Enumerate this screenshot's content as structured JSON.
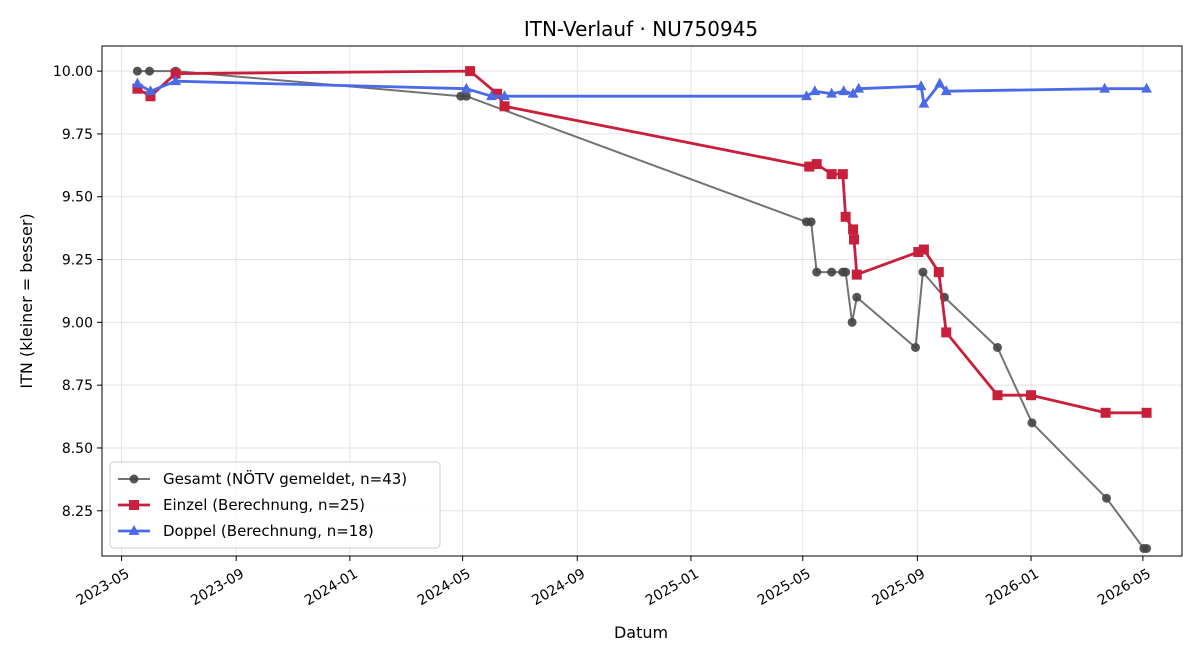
{
  "chart_data": {
    "type": "line",
    "title": "ITN-Verlauf · NU750945",
    "xlabel": "Datum",
    "ylabel": "ITN  (kleiner = besser)",
    "x_type": "date",
    "xlim": [
      "2023-04-10",
      "2026-06-12"
    ],
    "ylim": [
      8.07,
      10.1
    ],
    "grid": true,
    "legend_position": "lower-left",
    "x_ticks": [
      "2023-05-01",
      "2023-09-01",
      "2024-01-01",
      "2024-05-01",
      "2024-09-01",
      "2025-01-01",
      "2025-05-01",
      "2025-09-01",
      "2026-01-01",
      "2026-05-01"
    ],
    "x_tick_labels": [
      "2023-05",
      "2023-09",
      "2024-01",
      "2024-05",
      "2024-09",
      "2025-01",
      "2025-05",
      "2025-09",
      "2026-01",
      "2026-05"
    ],
    "y_ticks": [
      8.25,
      8.5,
      8.75,
      9.0,
      9.25,
      9.5,
      9.75,
      10.0
    ],
    "y_tick_labels": [
      "8.25",
      "8.50",
      "8.75",
      "9.00",
      "9.25",
      "9.50",
      "9.75",
      "10.00"
    ],
    "series": [
      {
        "name": "Gesamt (NÖTV gemeldet, n=43)",
        "color": "#444444",
        "marker": "circle",
        "points": [
          {
            "x": "2023-05-18",
            "y": 10.0
          },
          {
            "x": "2023-05-31",
            "y": 10.0
          },
          {
            "x": "2023-06-28",
            "y": 10.0
          },
          {
            "x": "2024-04-29",
            "y": 9.9
          },
          {
            "x": "2024-05-05",
            "y": 9.9
          },
          {
            "x": "2025-05-05",
            "y": 9.4
          },
          {
            "x": "2025-05-10",
            "y": 9.4
          },
          {
            "x": "2025-05-16",
            "y": 9.2
          },
          {
            "x": "2025-06-01",
            "y": 9.2
          },
          {
            "x": "2025-06-13",
            "y": 9.2
          },
          {
            "x": "2025-06-16",
            "y": 9.2
          },
          {
            "x": "2025-06-23",
            "y": 9.0
          },
          {
            "x": "2025-06-28",
            "y": 9.1
          },
          {
            "x": "2025-08-30",
            "y": 8.9
          },
          {
            "x": "2025-09-07",
            "y": 9.2
          },
          {
            "x": "2025-09-30",
            "y": 9.1
          },
          {
            "x": "2025-11-26",
            "y": 8.9
          },
          {
            "x": "2026-01-02",
            "y": 8.6
          },
          {
            "x": "2026-03-23",
            "y": 8.3
          },
          {
            "x": "2026-05-02",
            "y": 8.1
          },
          {
            "x": "2026-05-05",
            "y": 8.1
          }
        ]
      },
      {
        "name": "Einzel (Berechnung, n=25)",
        "color": "#c8203c",
        "marker": "square",
        "points": [
          {
            "x": "2023-05-18",
            "y": 9.93
          },
          {
            "x": "2023-06-01",
            "y": 9.9
          },
          {
            "x": "2023-06-28",
            "y": 9.99
          },
          {
            "x": "2024-05-09",
            "y": 10.0
          },
          {
            "x": "2024-06-07",
            "y": 9.91
          },
          {
            "x": "2024-06-15",
            "y": 9.86
          },
          {
            "x": "2025-05-08",
            "y": 9.62
          },
          {
            "x": "2025-05-16",
            "y": 9.63
          },
          {
            "x": "2025-06-01",
            "y": 9.59
          },
          {
            "x": "2025-06-13",
            "y": 9.59
          },
          {
            "x": "2025-06-16",
            "y": 9.42
          },
          {
            "x": "2025-06-24",
            "y": 9.37
          },
          {
            "x": "2025-06-25",
            "y": 9.33
          },
          {
            "x": "2025-06-28",
            "y": 9.19
          },
          {
            "x": "2025-09-02",
            "y": 9.28
          },
          {
            "x": "2025-09-08",
            "y": 9.29
          },
          {
            "x": "2025-09-24",
            "y": 9.2
          },
          {
            "x": "2025-10-02",
            "y": 8.96
          },
          {
            "x": "2025-11-26",
            "y": 8.71
          },
          {
            "x": "2026-01-01",
            "y": 8.71
          },
          {
            "x": "2026-03-22",
            "y": 8.64
          },
          {
            "x": "2026-05-05",
            "y": 8.64
          }
        ]
      },
      {
        "name": "Doppel (Berechnung, n=18)",
        "color": "#4a6ae8",
        "marker": "triangle",
        "points": [
          {
            "x": "2023-05-18",
            "y": 9.95
          },
          {
            "x": "2023-06-01",
            "y": 9.92
          },
          {
            "x": "2023-06-28",
            "y": 9.96
          },
          {
            "x": "2024-05-05",
            "y": 9.93
          },
          {
            "x": "2024-06-01",
            "y": 9.9
          },
          {
            "x": "2024-06-15",
            "y": 9.9
          },
          {
            "x": "2025-05-05",
            "y": 9.9
          },
          {
            "x": "2025-05-14",
            "y": 9.92
          },
          {
            "x": "2025-06-01",
            "y": 9.91
          },
          {
            "x": "2025-06-14",
            "y": 9.92
          },
          {
            "x": "2025-06-24",
            "y": 9.91
          },
          {
            "x": "2025-06-30",
            "y": 9.93
          },
          {
            "x": "2025-09-05",
            "y": 9.94
          },
          {
            "x": "2025-09-08",
            "y": 9.87
          },
          {
            "x": "2025-09-25",
            "y": 9.95
          },
          {
            "x": "2025-10-02",
            "y": 9.92
          },
          {
            "x": "2026-03-21",
            "y": 9.93
          },
          {
            "x": "2026-05-05",
            "y": 9.93
          }
        ]
      }
    ]
  }
}
